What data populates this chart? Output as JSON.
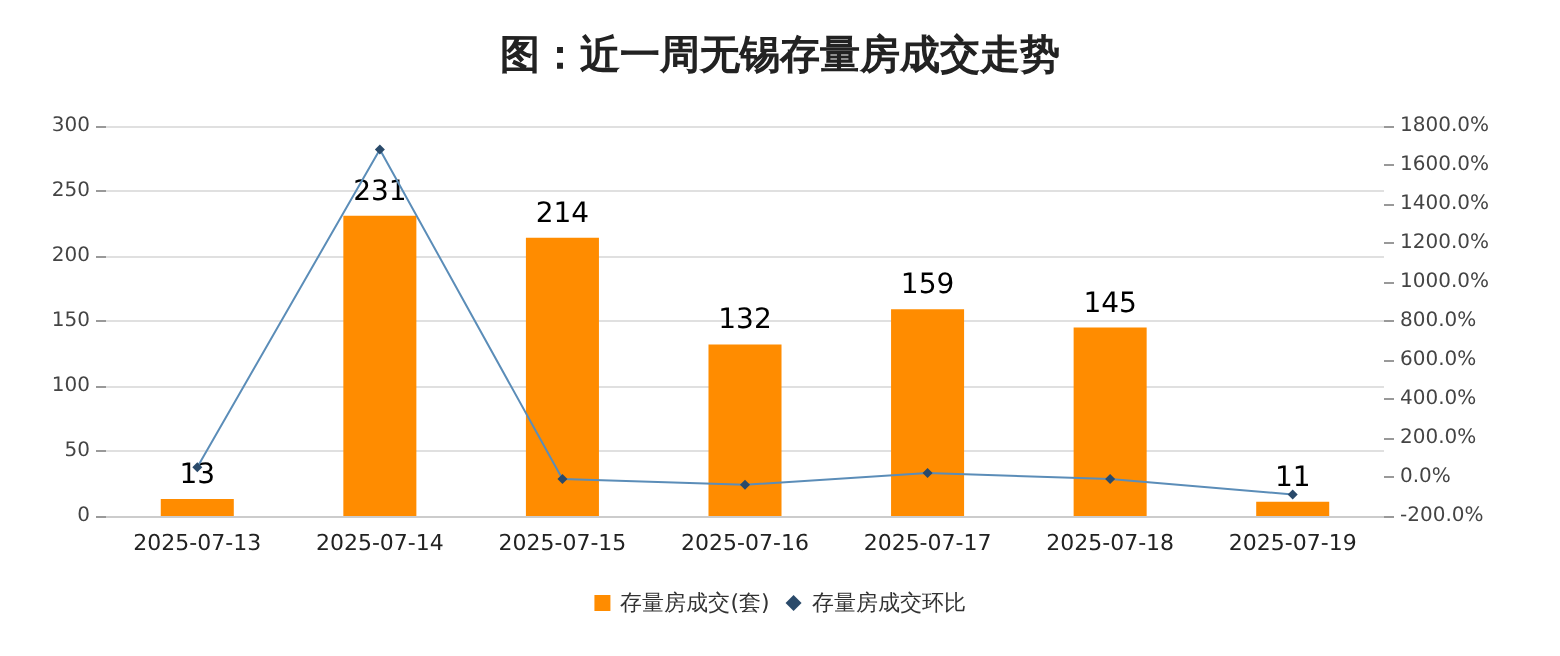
{
  "chart_data": {
    "type": "bar",
    "title": "图：近一周无锡存量房成交走势",
    "categories": [
      "2025-07-13",
      "2025-07-14",
      "2025-07-15",
      "2025-07-16",
      "2025-07-17",
      "2025-07-18",
      "2025-07-19"
    ],
    "series": [
      {
        "name": "存量房成交(套)",
        "color": "#ff8c00",
        "values": [
          13,
          231,
          214,
          132,
          159,
          145,
          11
        ],
        "value_labels": [
          "13",
          "231",
          "214",
          "132",
          "159",
          "145",
          "11"
        ]
      },
      {
        "name": "存量房成交环比",
        "type": "line",
        "axis": "y2",
        "color": "#5b8db8",
        "marker": "diamond",
        "values": [
          50,
          1680,
          -10,
          -40,
          20,
          -10,
          -90
        ]
      }
    ],
    "ylim": [
      0,
      300
    ],
    "yticks": [
      0,
      50,
      100,
      150,
      200,
      250,
      300
    ],
    "y2lim": [
      -200,
      1800
    ],
    "y2ticks": [
      {
        "value": -200,
        "label": "-200.0%"
      },
      {
        "value": 0,
        "label": "0.0%"
      },
      {
        "value": 200,
        "label": "200.0%"
      },
      {
        "value": 400,
        "label": "400.0%"
      },
      {
        "value": 600,
        "label": "600.0%"
      },
      {
        "value": 800,
        "label": "800.0%"
      },
      {
        "value": 1000,
        "label": "1000.0%"
      },
      {
        "value": 1200,
        "label": "1200.0%"
      },
      {
        "value": 1400,
        "label": "1400.0%"
      },
      {
        "value": 1600,
        "label": "1600.0%"
      },
      {
        "value": 1800,
        "label": "1800.0%"
      }
    ],
    "grid": "y",
    "legend": "bottom"
  }
}
